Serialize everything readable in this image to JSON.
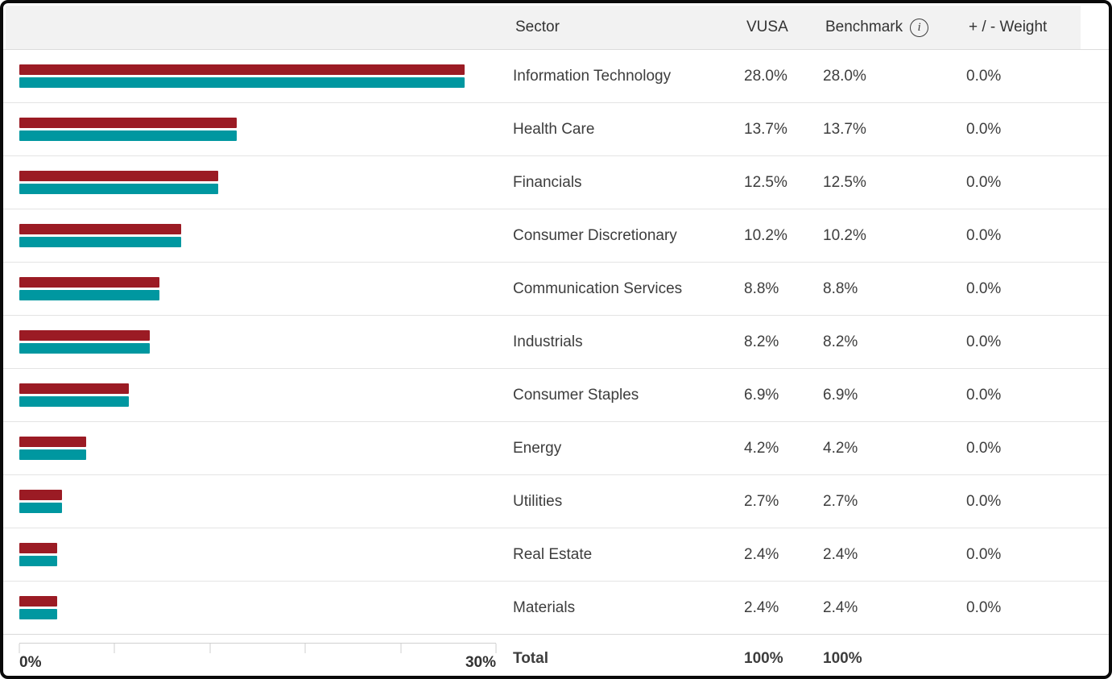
{
  "header": {
    "sector": "Sector",
    "vusa": "VUSA",
    "benchmark": "Benchmark",
    "weight": "+ / - Weight"
  },
  "icons": {
    "info_glyph": "i"
  },
  "rows": [
    {
      "sector": "Information Technology",
      "vusa": "28.0%",
      "benchmark": "28.0%",
      "weight": "0.0%"
    },
    {
      "sector": "Health Care",
      "vusa": "13.7%",
      "benchmark": "13.7%",
      "weight": "0.0%"
    },
    {
      "sector": "Financials",
      "vusa": "12.5%",
      "benchmark": "12.5%",
      "weight": "0.0%"
    },
    {
      "sector": "Consumer Discretionary",
      "vusa": "10.2%",
      "benchmark": "10.2%",
      "weight": "0.0%"
    },
    {
      "sector": "Communication Services",
      "vusa": "8.8%",
      "benchmark": "8.8%",
      "weight": "0.0%"
    },
    {
      "sector": "Industrials",
      "vusa": "8.2%",
      "benchmark": "8.2%",
      "weight": "0.0%"
    },
    {
      "sector": "Consumer Staples",
      "vusa": "6.9%",
      "benchmark": "6.9%",
      "weight": "0.0%"
    },
    {
      "sector": "Energy",
      "vusa": "4.2%",
      "benchmark": "4.2%",
      "weight": "0.0%"
    },
    {
      "sector": "Utilities",
      "vusa": "2.7%",
      "benchmark": "2.7%",
      "weight": "0.0%"
    },
    {
      "sector": "Real Estate",
      "vusa": "2.4%",
      "benchmark": "2.4%",
      "weight": "0.0%"
    },
    {
      "sector": "Materials",
      "vusa": "2.4%",
      "benchmark": "2.4%",
      "weight": "0.0%"
    }
  ],
  "total": {
    "label": "Total",
    "vusa": "100%",
    "benchmark": "100%",
    "weight": ""
  },
  "chart_data": {
    "type": "bar",
    "orientation": "horizontal",
    "title": "",
    "xlabel": "",
    "ylabel": "",
    "categories": [
      "Information Technology",
      "Health Care",
      "Financials",
      "Consumer Discretionary",
      "Communication Services",
      "Industrials",
      "Consumer Staples",
      "Energy",
      "Utilities",
      "Real Estate",
      "Materials"
    ],
    "series": [
      {
        "name": "VUSA",
        "color": "#9b1b24",
        "values": [
          28.0,
          13.7,
          12.5,
          10.2,
          8.8,
          8.2,
          6.9,
          4.2,
          2.7,
          2.4,
          2.4
        ]
      },
      {
        "name": "Benchmark",
        "color": "#0097a0",
        "values": [
          28.0,
          13.7,
          12.5,
          10.2,
          8.8,
          8.2,
          6.9,
          4.2,
          2.7,
          2.4,
          2.4
        ]
      }
    ],
    "xlim": [
      0,
      30
    ],
    "xticks": [
      0,
      6,
      12,
      18,
      24,
      30
    ],
    "xtick_labels": [
      "0%",
      "",
      "",
      "",
      "",
      "30%"
    ],
    "grid": false,
    "legend": "none"
  },
  "colors": {
    "vusa_bar": "#9b1b24",
    "benchmark_bar": "#0097a0",
    "header_bg": "#f2f2f2",
    "row_border": "#e4e4e4",
    "axis": "#cfcfcf",
    "text": "#3d3d3d",
    "frame_border": "#0a0a0a"
  }
}
